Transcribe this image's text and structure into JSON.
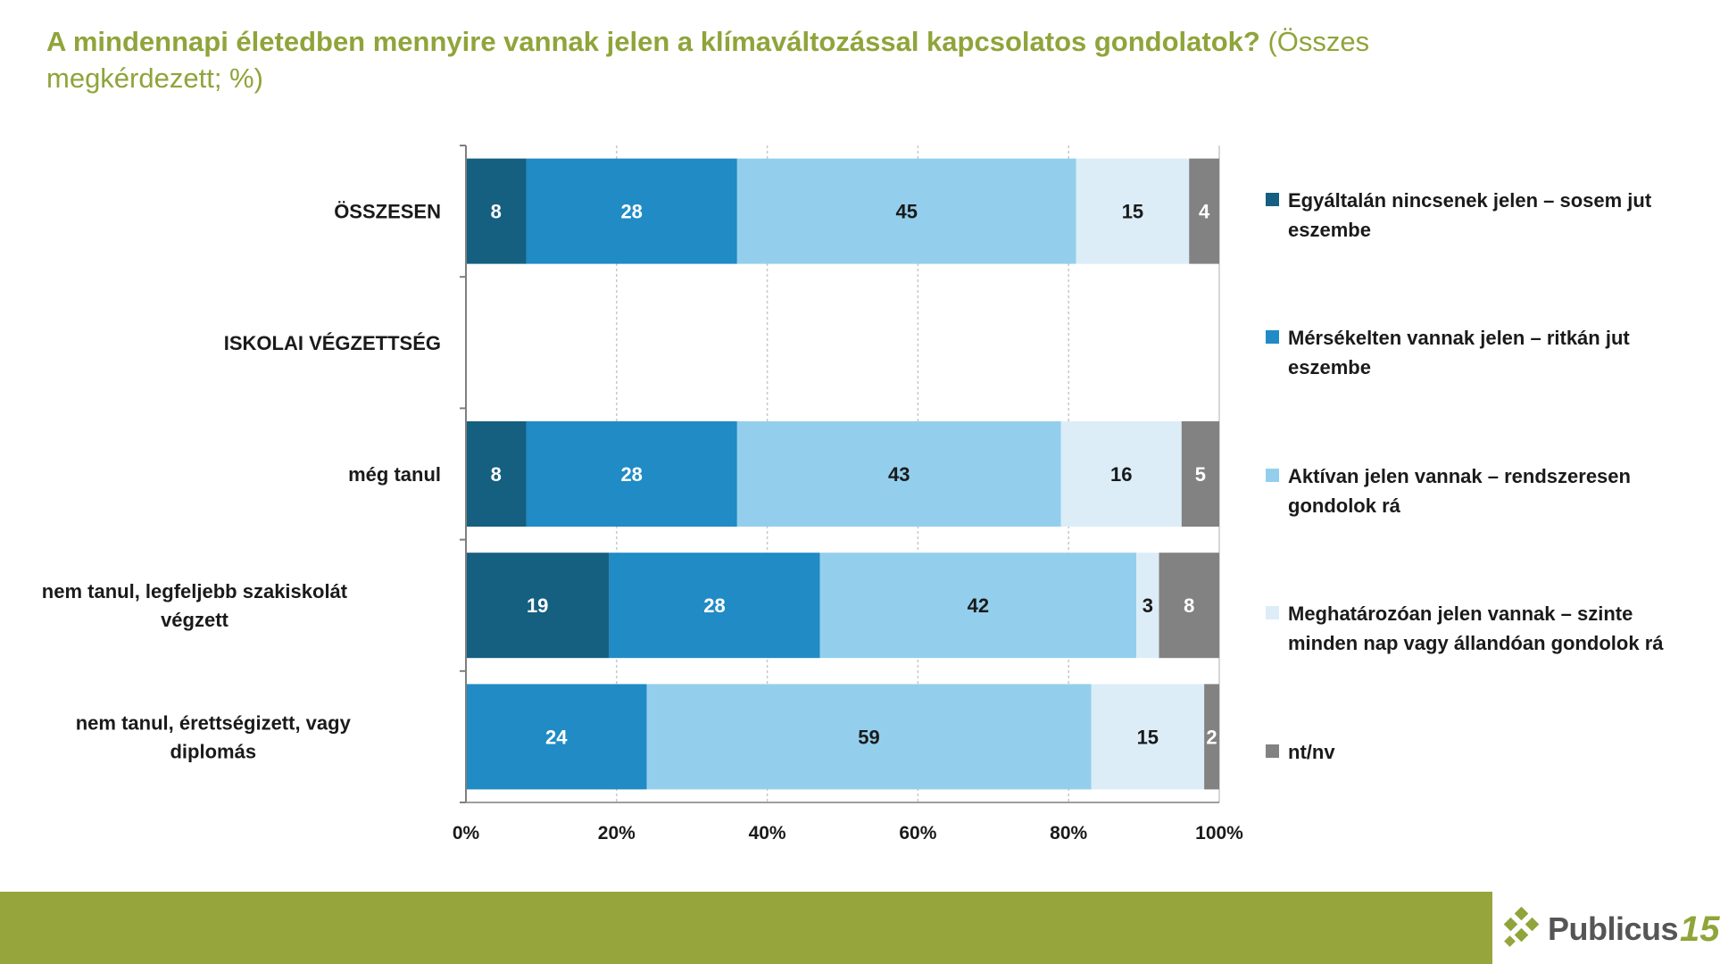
{
  "title": {
    "question": "A mindennapi életedben mennyire vannak jelen a klímaváltozással kapcsolatos gondolatok?",
    "subtitle": "(Összes megkérdezett; %)"
  },
  "colors": {
    "title": "#8fa43a",
    "footer": "#97a53d",
    "series": [
      "#155f80",
      "#208bc5",
      "#93cfed",
      "#dcedf8",
      "#828282"
    ]
  },
  "chart_data": {
    "type": "bar",
    "orientation": "horizontal",
    "stacked": true,
    "categories": [
      "ÖSSZESEN",
      "ISKOLAI VÉGZETTSÉG",
      "még tanul",
      "nem tanul, legfeljebb szakiskolát végzett",
      "nem tanul, érettségizett, vagy diplomás"
    ],
    "series": [
      {
        "name": "Egyáltalán nincsenek jelen – sosem jut eszembe",
        "values": [
          8,
          null,
          8,
          19,
          null
        ]
      },
      {
        "name": "Mérsékelten vannak jelen – ritkán jut eszembe",
        "values": [
          28,
          null,
          28,
          28,
          24
        ]
      },
      {
        "name": "Aktívan jelen vannak – rendszeresen gondolok rá",
        "values": [
          45,
          null,
          43,
          42,
          59
        ]
      },
      {
        "name": "Meghatározóan jelen vannak – szinte minden nap vagy állandóan gondolok rá",
        "values": [
          15,
          null,
          16,
          3,
          15
        ]
      },
      {
        "name": "nt/nv",
        "values": [
          4,
          null,
          5,
          8,
          2
        ]
      }
    ],
    "xlim": [
      0,
      100
    ],
    "xticks": [
      "0%",
      "20%",
      "40%",
      "60%",
      "80%",
      "100%"
    ],
    "grid": "vertical dashed",
    "legend": "right"
  },
  "logo": {
    "text": "Publicus",
    "number": "15"
  }
}
